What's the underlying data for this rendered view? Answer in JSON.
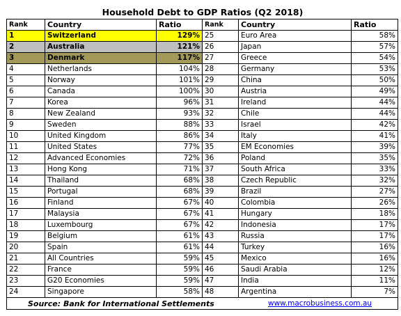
{
  "title": "Household Debt to GDP Ratios (Q2 2018)",
  "headers": {
    "rank": "Rank",
    "country": "Country",
    "ratio": "Ratio"
  },
  "rows": [
    {
      "rank": "1",
      "country": "Switzerland",
      "ratio": "129%",
      "rank2": "25",
      "country2": "Euro Area",
      "ratio2": "58%"
    },
    {
      "rank": "2",
      "country": "Australia",
      "ratio": "121%",
      "rank2": "26",
      "country2": "Japan",
      "ratio2": "57%"
    },
    {
      "rank": "3",
      "country": "Denmark",
      "ratio": "117%",
      "rank2": "27",
      "country2": "Greece",
      "ratio2": "54%"
    },
    {
      "rank": "4",
      "country": "Netherlands",
      "ratio": "104%",
      "rank2": "28",
      "country2": "Germany",
      "ratio2": "53%"
    },
    {
      "rank": "5",
      "country": "Norway",
      "ratio": "101%",
      "rank2": "29",
      "country2": "China",
      "ratio2": "50%"
    },
    {
      "rank": "6",
      "country": "Canada",
      "ratio": "100%",
      "rank2": "30",
      "country2": "Austria",
      "ratio2": "49%"
    },
    {
      "rank": "7",
      "country": "Korea",
      "ratio": "96%",
      "rank2": "31",
      "country2": "Ireland",
      "ratio2": "44%"
    },
    {
      "rank": "8",
      "country": "New Zealand",
      "ratio": "93%",
      "rank2": "32",
      "country2": "Chile",
      "ratio2": "44%"
    },
    {
      "rank": "9",
      "country": "Sweden",
      "ratio": "88%",
      "rank2": "33",
      "country2": "Israel",
      "ratio2": "42%"
    },
    {
      "rank": "10",
      "country": "United Kingdom",
      "ratio": "86%",
      "rank2": "34",
      "country2": "Italy",
      "ratio2": "41%"
    },
    {
      "rank": "11",
      "country": "United States",
      "ratio": "77%",
      "rank2": "35",
      "country2": "EM Economies",
      "ratio2": "39%"
    },
    {
      "rank": "12",
      "country": "Advanced Economies",
      "ratio": "72%",
      "rank2": "36",
      "country2": "Poland",
      "ratio2": "35%"
    },
    {
      "rank": "13",
      "country": "Hong Kong",
      "ratio": "71%",
      "rank2": "37",
      "country2": "South Africa",
      "ratio2": "33%"
    },
    {
      "rank": "14",
      "country": "Thailand",
      "ratio": "68%",
      "rank2": "38",
      "country2": "Czech Republic",
      "ratio2": "32%"
    },
    {
      "rank": "15",
      "country": "Portugal",
      "ratio": "68%",
      "rank2": "39",
      "country2": "Brazil",
      "ratio2": "27%"
    },
    {
      "rank": "16",
      "country": "Finland",
      "ratio": "67%",
      "rank2": "40",
      "country2": "Colombia",
      "ratio2": "26%"
    },
    {
      "rank": "17",
      "country": "Malaysia",
      "ratio": "67%",
      "rank2": "41",
      "country2": "Hungary",
      "ratio2": "18%"
    },
    {
      "rank": "18",
      "country": "Luxembourg",
      "ratio": "67%",
      "rank2": "42",
      "country2": "Indonesia",
      "ratio2": "17%"
    },
    {
      "rank": "19",
      "country": "Belgium",
      "ratio": "61%",
      "rank2": "43",
      "country2": "Russia",
      "ratio2": "17%"
    },
    {
      "rank": "20",
      "country": "Spain",
      "ratio": "61%",
      "rank2": "44",
      "country2": "Turkey",
      "ratio2": "16%"
    },
    {
      "rank": "21",
      "country": "All Countries",
      "ratio": "59%",
      "rank2": "45",
      "country2": "Mexico",
      "ratio2": "16%"
    },
    {
      "rank": "22",
      "country": "France",
      "ratio": "59%",
      "rank2": "46",
      "country2": "Saudi Arabia",
      "ratio2": "12%"
    },
    {
      "rank": "23",
      "country": "G20 Economies",
      "ratio": "59%",
      "rank2": "47",
      "country2": "India",
      "ratio2": "11%"
    },
    {
      "rank": "24",
      "country": "Singapore",
      "ratio": "58%",
      "rank2": "48",
      "country2": "Argentina",
      "ratio2": "7%"
    }
  ],
  "highlight_colors": {
    "first": "#ffff00",
    "second": "#bfbfbf",
    "third": "#a39a5a"
  },
  "footer": {
    "source": "Source: Bank for International Settlements",
    "link": "www.macrobusiness.com.au"
  }
}
